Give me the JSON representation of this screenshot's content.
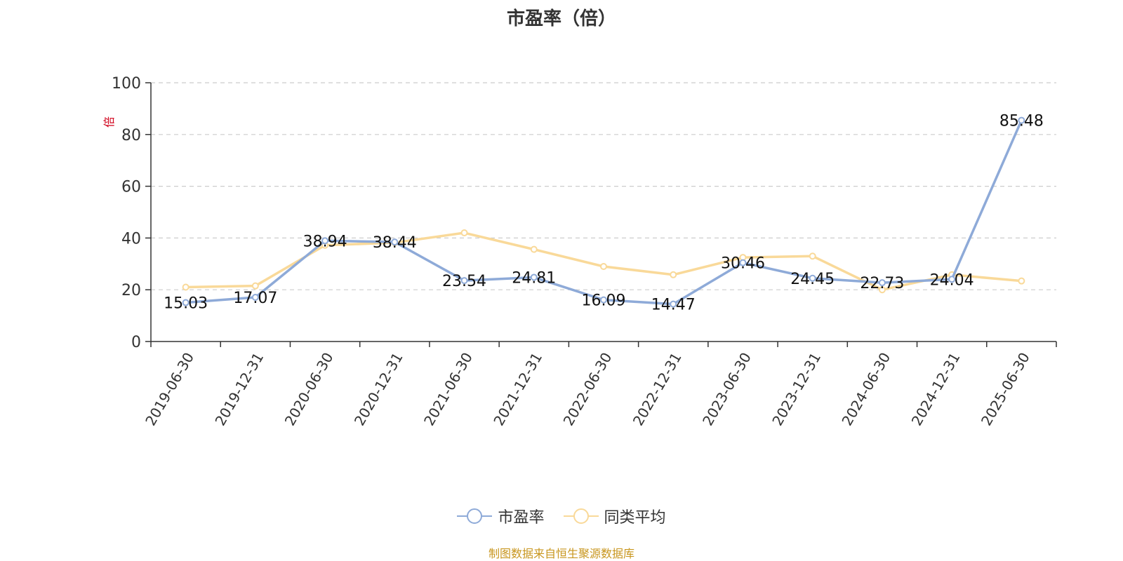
{
  "chart_data": {
    "type": "line",
    "title": "市盈率（倍）",
    "ylabel": "倍",
    "ylim": [
      0,
      100
    ],
    "yticks": [
      0,
      20,
      40,
      60,
      80,
      100
    ],
    "grid": true,
    "legend_position": "bottom",
    "categories": [
      "2019-06-30",
      "2019-12-31",
      "2020-06-30",
      "2020-12-31",
      "2021-06-30",
      "2021-12-31",
      "2022-06-30",
      "2022-12-31",
      "2023-06-30",
      "2023-12-31",
      "2024-06-30",
      "2024-12-31",
      "2025-06-30"
    ],
    "series": [
      {
        "name": "市盈率",
        "color": "#8eaad8",
        "values": [
          15.03,
          17.07,
          38.94,
          38.44,
          23.54,
          24.81,
          16.09,
          14.47,
          30.46,
          24.45,
          22.73,
          24.04,
          85.48
        ],
        "labels": [
          "15.03",
          "17.07",
          "38.94",
          "38.44",
          "23.54",
          "24.81",
          "16.09",
          "14.47",
          "30.46",
          "24.45",
          "22.73",
          "24.04",
          "85.48"
        ]
      },
      {
        "name": "同类平均",
        "color": "#f9d999",
        "values": [
          21.0,
          21.5,
          37.2,
          38.2,
          42.0,
          35.6,
          29.0,
          25.8,
          32.5,
          33.0,
          20.0,
          25.8,
          23.4
        ]
      }
    ],
    "source": "制图数据来自恒生聚源数据库"
  }
}
